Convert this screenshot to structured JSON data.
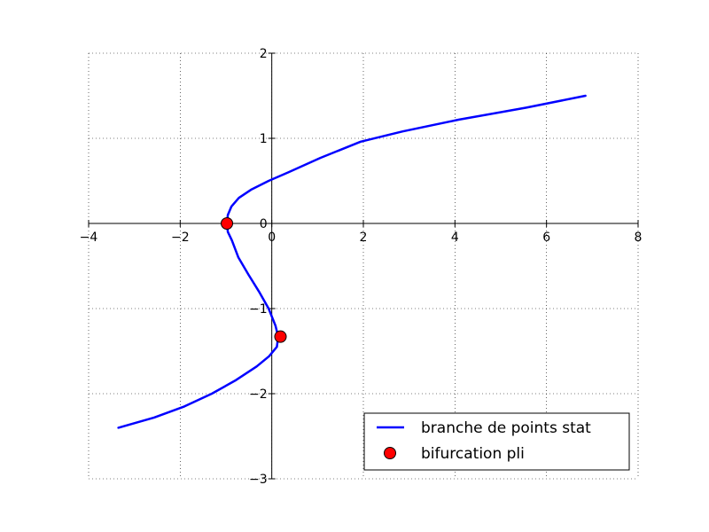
{
  "chart_data": {
    "type": "line",
    "title": "",
    "xlabel": "",
    "ylabel": "",
    "xlim": [
      -4,
      8
    ],
    "ylim": [
      -3,
      2
    ],
    "xticks": [
      -4,
      -2,
      0,
      2,
      4,
      6,
      8
    ],
    "yticks": [
      -3,
      -2,
      -1,
      0,
      1,
      2
    ],
    "xtick_labels": [
      "−4",
      "−2",
      "0",
      "2",
      "4",
      "6",
      "8"
    ],
    "ytick_labels": [
      "−3",
      "−2",
      "−1",
      "0",
      "1",
      "2"
    ],
    "grid": true,
    "axes_through_origin": true,
    "legend_position": "lower-right",
    "series": [
      {
        "name": "branche de points stat",
        "kind": "line",
        "color": "#0000ff",
        "x": [
          -3.35,
          -2.57,
          -1.91,
          -1.31,
          -0.78,
          -0.33,
          -0.06,
          0.11,
          0.14,
          0.08,
          -0.07,
          -0.28,
          -0.51,
          -0.73,
          -0.87,
          -0.96,
          -0.98,
          -0.96,
          -0.88,
          -0.72,
          -0.44,
          -0.07,
          0.36,
          1.06,
          1.94,
          2.85,
          4.09,
          5.56,
          6.85
        ],
        "y": [
          -2.4,
          -2.28,
          -2.15,
          -2.0,
          -1.84,
          -1.68,
          -1.56,
          -1.45,
          -1.33,
          -1.2,
          -1.0,
          -0.8,
          -0.6,
          -0.4,
          -0.2,
          -0.1,
          0.0,
          0.1,
          0.2,
          0.3,
          0.4,
          0.5,
          0.6,
          0.77,
          0.96,
          1.08,
          1.22,
          1.36,
          1.5
        ]
      },
      {
        "name": "bifurcation pli",
        "kind": "scatter",
        "color": "#ff0000",
        "x": [
          -0.98,
          0.19
        ],
        "y": [
          0.0,
          -1.33
        ]
      }
    ]
  }
}
